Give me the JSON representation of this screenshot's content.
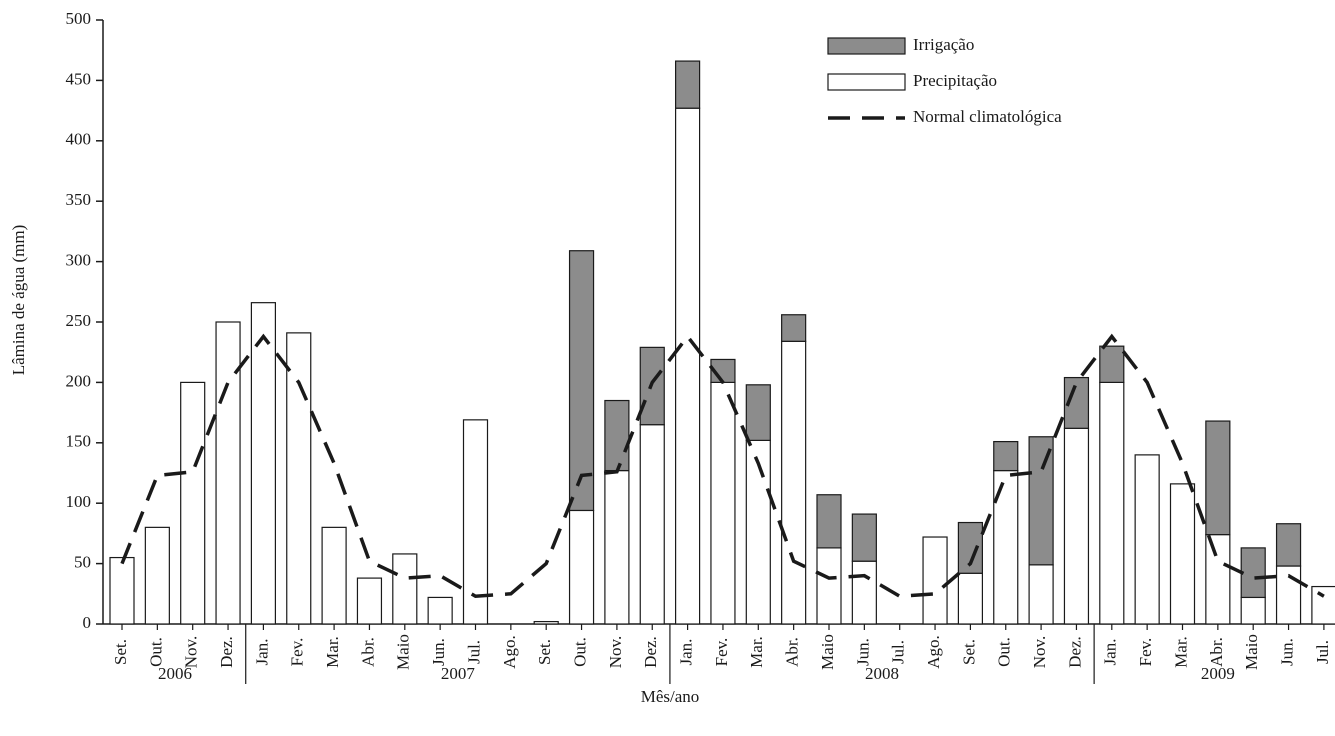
{
  "chart_data": {
    "type": "bar",
    "stacked": true,
    "y_label": "Lâmina de água (mm)",
    "x_label": "Mês/ano",
    "groups": [
      {
        "label": "2006",
        "categories": [
          "Set.",
          "Out.",
          "Nov.",
          "Dez."
        ]
      },
      {
        "label": "2007",
        "categories": [
          "Jan.",
          "Fev.",
          "Mar.",
          "Abr.",
          "Maio",
          "Jun.",
          "Jul.",
          "Ago.",
          "Set.",
          "Out.",
          "Nov.",
          "Dez."
        ]
      },
      {
        "label": "2008",
        "categories": [
          "Jan.",
          "Fev.",
          "Mar.",
          "Abr.",
          "Maio",
          "Jun.",
          "Jul.",
          "Ago.",
          "Set.",
          "Out.",
          "Nov.",
          "Dez."
        ]
      },
      {
        "label": "2009",
        "categories": [
          "Jan.",
          "Fev.",
          "Mar.",
          "Abr.",
          "Maio",
          "Jun.",
          "Jul."
        ]
      }
    ],
    "series": [
      {
        "name": "Irrigação",
        "type": "bar",
        "color": "#8c8c8c",
        "values": [
          0,
          0,
          0,
          0,
          0,
          0,
          0,
          0,
          0,
          0,
          0,
          0,
          0,
          215,
          58,
          64,
          39,
          19,
          46,
          22,
          44,
          39,
          0,
          0,
          42,
          24,
          106,
          42,
          30,
          0,
          0,
          94,
          41,
          35,
          0
        ]
      },
      {
        "name": "Precipitação",
        "type": "bar",
        "color": "#ffffff",
        "values": [
          55,
          80,
          200,
          250,
          266,
          241,
          80,
          38,
          58,
          22,
          169,
          0,
          2,
          94,
          127,
          165,
          427,
          200,
          152,
          234,
          63,
          52,
          0,
          72,
          42,
          127,
          49,
          162,
          200,
          140,
          116,
          74,
          22,
          48,
          31
        ]
      },
      {
        "name": "Normal climatológica",
        "type": "line",
        "color": "#1a1a1a",
        "values": [
          50,
          123,
          126,
          200,
          238,
          200,
          133,
          52,
          38,
          40,
          23,
          25,
          50,
          123,
          126,
          200,
          238,
          200,
          133,
          52,
          38,
          40,
          23,
          25,
          50,
          123,
          126,
          200,
          238,
          200,
          133,
          52,
          38,
          40,
          23
        ]
      }
    ],
    "ylim": [
      0,
      500
    ],
    "yticks": [
      0,
      50,
      100,
      150,
      200,
      250,
      300,
      350,
      400,
      450,
      500
    ],
    "legend": "upper right"
  }
}
